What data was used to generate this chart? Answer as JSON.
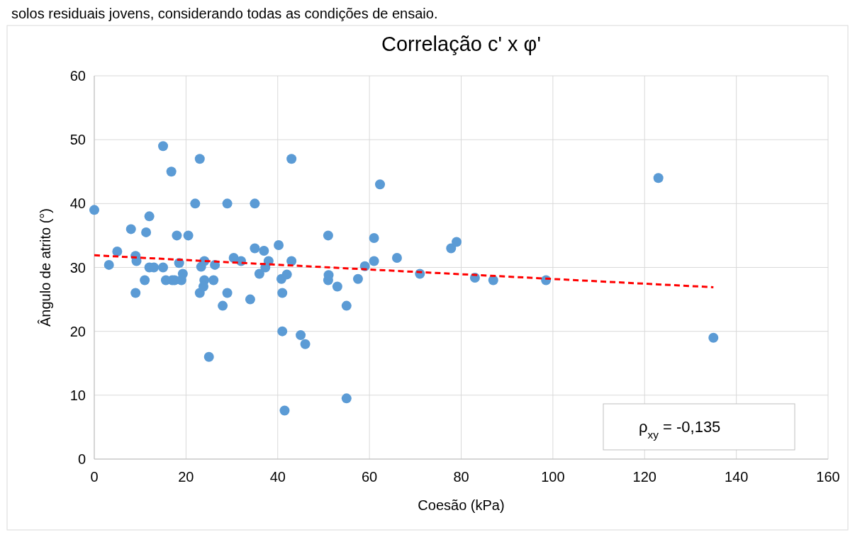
{
  "chart_data": {
    "type": "scatter",
    "title": "Correlação c' x φ'",
    "xlabel": "Coesão (kPa)",
    "ylabel": "Ângulo de atrito (°)",
    "annotations": [
      "solos residuais jovens, considerando todas as condições de ensaio.",
      "ρ$_{xy}$ = -0,135"
    ],
    "xlim": [
      0,
      160
    ],
    "xticks": [
      0,
      20,
      40,
      60,
      80,
      100,
      120,
      140,
      160
    ],
    "ylim": [
      0,
      60
    ],
    "yticks": [
      0,
      10,
      20,
      30,
      40,
      50,
      60
    ],
    "grid": true,
    "series": [
      {
        "color": "#5b9bd5",
        "marker": "circle",
        "x": [
          0,
          3.2,
          5,
          8,
          9,
          9.2,
          9,
          11,
          11.3,
          12,
          12,
          13,
          15,
          15,
          15.6,
          16.8,
          17,
          17.5,
          18,
          18.5,
          19,
          19.3,
          20.5,
          22,
          23,
          23,
          23.3,
          24,
          24,
          23.8,
          25,
          26,
          26.3,
          28,
          29,
          29,
          30.4,
          32,
          34,
          35,
          35,
          36,
          37,
          37.3,
          38,
          40.2,
          40.8,
          41,
          41,
          41.5,
          42,
          43,
          43,
          45,
          46,
          51,
          51,
          51.1,
          53,
          55,
          55,
          57.5,
          59,
          61,
          61,
          62.3,
          66,
          71,
          77.8,
          79,
          83,
          87,
          98.5,
          123,
          135
        ],
        "values": [
          39,
          30.4,
          32.5,
          36,
          31.8,
          31,
          26,
          28,
          35.5,
          38,
          30,
          30,
          49,
          30,
          28,
          45,
          28,
          28,
          35,
          30.7,
          28,
          29,
          35,
          40,
          47,
          26,
          30.1,
          31,
          28,
          27,
          16,
          28,
          30.4,
          24,
          40,
          26,
          31.5,
          31,
          25,
          40,
          33,
          29,
          32.6,
          30,
          31,
          33.5,
          28.2,
          26,
          20,
          7.6,
          28.9,
          47,
          31,
          19.4,
          18,
          35,
          28,
          28.8,
          27,
          24,
          9.5,
          28.2,
          30.2,
          34.6,
          31,
          43,
          31.5,
          29,
          33,
          34,
          28.4,
          28,
          28,
          44,
          19
        ]
      },
      {
        "type": "line",
        "color": "#ff0000",
        "line_style": "dashed",
        "marker": "none",
        "x": [
          0,
          135
        ],
        "values": [
          31.9,
          26.9
        ]
      }
    ]
  }
}
